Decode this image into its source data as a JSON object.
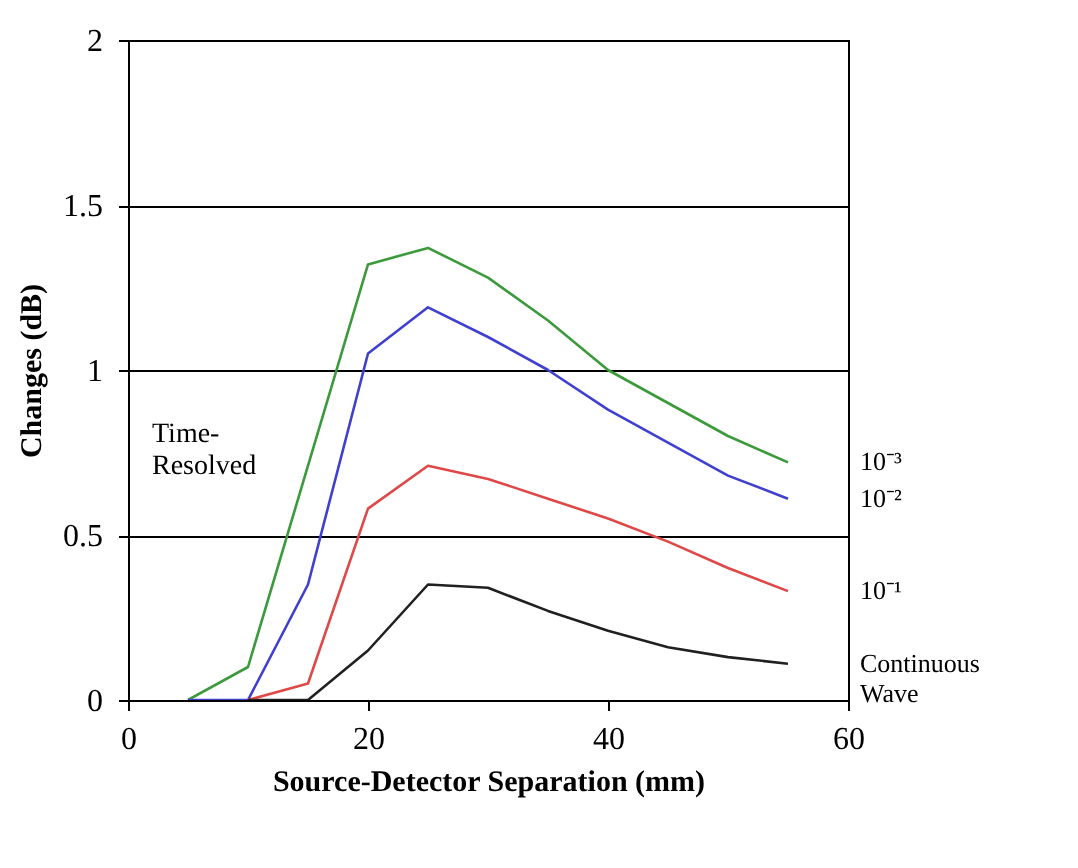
{
  "chart_data": {
    "type": "line",
    "xlabel": "Source-Detector Separation (mm)",
    "ylabel": "Changes (dB)",
    "xlim": [
      0,
      60
    ],
    "xticks": [
      0,
      20,
      40,
      60
    ],
    "ylim": [
      0,
      2
    ],
    "yticks": [
      0,
      0.5,
      1,
      1.5,
      2
    ],
    "grid": "y",
    "legend": false,
    "marker": "none",
    "line_style": "solid",
    "series": [
      {
        "name": "10⁻³",
        "color": "#3c9a3c",
        "x": [
          5,
          10,
          20,
          25,
          30,
          35,
          40,
          45,
          50,
          55
        ],
        "values": [
          0,
          0.1,
          1.32,
          1.37,
          1.28,
          1.15,
          1.0,
          0.9,
          0.8,
          0.72
        ]
      },
      {
        "name": "10⁻²",
        "color": "#4040d0",
        "x": [
          5,
          10,
          15,
          20,
          25,
          30,
          35,
          40,
          45,
          50,
          55
        ],
        "values": [
          0,
          0,
          0.35,
          1.05,
          1.19,
          1.1,
          1.0,
          0.88,
          0.78,
          0.68,
          0.61
        ]
      },
      {
        "name": "10⁻¹",
        "color": "#e04848",
        "x": [
          10,
          15,
          20,
          25,
          30,
          35,
          40,
          45,
          50,
          55
        ],
        "values": [
          0,
          0.05,
          0.58,
          0.71,
          0.67,
          0.61,
          0.55,
          0.48,
          0.4,
          0.33
        ]
      },
      {
        "name": "Continuous Wave",
        "color": "#202020",
        "x": [
          10,
          15,
          20,
          25,
          30,
          35,
          40,
          45,
          50,
          55
        ],
        "values": [
          0,
          0,
          0.15,
          0.35,
          0.34,
          0.27,
          0.21,
          0.16,
          0.13,
          0.11
        ]
      }
    ],
    "annotations": [
      "Time-Resolved"
    ]
  }
}
